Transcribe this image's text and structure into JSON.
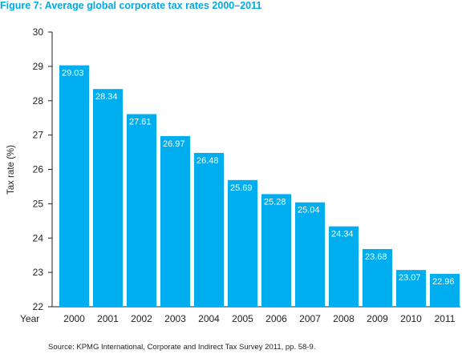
{
  "chart_data": {
    "type": "bar",
    "title": "Figure 7: Average global corporate tax rates 2000–2011",
    "xlabel": "Year",
    "ylabel": "Tax rate (%)",
    "ylim": [
      22,
      30
    ],
    "yticks": [
      22,
      23,
      24,
      25,
      26,
      27,
      28,
      29,
      30
    ],
    "grid": false,
    "bar_color": "#00aeef",
    "categories": [
      "2000",
      "2001",
      "2002",
      "2003",
      "2004",
      "2005",
      "2006",
      "2007",
      "2008",
      "2009",
      "2010",
      "2011"
    ],
    "values": [
      29.03,
      28.34,
      27.61,
      26.97,
      26.48,
      25.69,
      25.28,
      25.04,
      24.34,
      23.68,
      23.07,
      22.96
    ],
    "value_labels": [
      "29.03",
      "28.34",
      "27.61",
      "26.97",
      "26.48",
      "25.69",
      "25.28",
      "25.04",
      "24.34",
      "23.68",
      "23.07",
      "22.96"
    ]
  },
  "source": "Source: KPMG International, Corporate and Indirect Tax Survey 2011, pp. 58-9."
}
